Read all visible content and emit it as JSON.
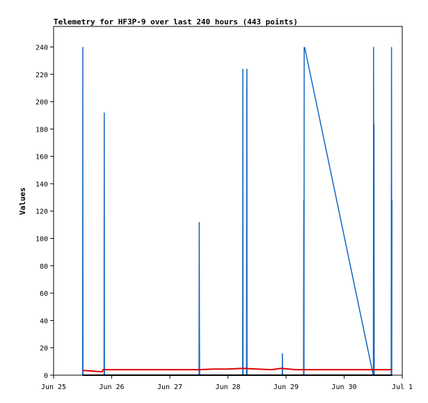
{
  "chart_data": {
    "type": "line",
    "title": "Telemetry for HF3P-9 over last 240 hours (443 points)",
    "xlabel": "",
    "ylabel": "Values",
    "x_axis": {
      "min": "2025-06-25T00:00",
      "max": "2025-07-01T00:00",
      "tick_values": [
        "2025-06-25T00:00",
        "2025-06-26T00:00",
        "2025-06-27T00:00",
        "2025-06-28T00:00",
        "2025-06-29T00:00",
        "2025-06-30T00:00",
        "2025-07-01T00:00"
      ],
      "tick_labels": [
        "Jun 25",
        "Jun 26",
        "Jun 27",
        "Jun 28",
        "Jun 29",
        "Jun 30",
        "Jul 1"
      ]
    },
    "ylim": [
      0,
      255
    ],
    "y_ticks": [
      0,
      20,
      40,
      60,
      80,
      100,
      120,
      140,
      160,
      180,
      200,
      220,
      240
    ],
    "grid": false,
    "colors": {
      "blue_series": "#1565c0",
      "red_series": "#dd0000",
      "baseline": "#000000"
    },
    "series": [
      {
        "color": "#1565c0",
        "x": [
          "2025-06-25T12:00",
          "2025-06-25T12:05",
          "2025-06-25T12:10",
          "2025-06-25T20:50",
          "2025-06-25T20:55",
          "2025-06-25T21:00",
          "2025-06-27T12:05",
          "2025-06-27T12:10",
          "2025-06-27T12:15",
          "2025-06-27T12:20",
          "2025-06-28T06:05",
          "2025-06-28T06:10",
          "2025-06-28T06:15",
          "2025-06-28T07:40",
          "2025-06-28T07:45",
          "2025-06-28T07:50",
          "2025-06-28T07:55",
          "2025-06-28T22:25",
          "2025-06-28T22:30",
          "2025-06-28T22:35",
          "2025-06-29T07:15",
          "2025-06-29T07:20",
          "2025-06-29T07:25",
          "2025-06-29T07:30",
          "2025-06-29T07:35",
          "2025-06-29T07:40",
          "2025-06-30T12:00",
          "2025-06-30T12:05",
          "2025-06-30T12:10",
          "2025-06-30T12:15",
          "2025-06-30T12:20",
          "2025-06-30T12:25",
          "2025-06-30T19:25",
          "2025-06-30T19:30",
          "2025-06-30T19:35",
          "2025-06-30T19:40",
          "2025-06-30T19:45"
        ],
        "y": [
          0,
          240,
          0,
          0,
          192,
          0,
          0,
          112,
          32,
          0,
          0,
          224,
          0,
          0,
          208,
          224,
          0,
          0,
          16,
          0,
          0,
          128,
          0,
          240,
          238,
          240,
          0,
          0,
          240,
          0,
          184,
          0,
          0,
          120,
          240,
          0,
          128
        ]
      },
      {
        "color": "#dd0000",
        "x": [
          "2025-06-25T12:00",
          "2025-06-25T16:00",
          "2025-06-25T20:00",
          "2025-06-25T20:30",
          "2025-06-26T12:00",
          "2025-06-27T12:00",
          "2025-06-27T18:00",
          "2025-06-28T00:00",
          "2025-06-28T06:00",
          "2025-06-28T12:00",
          "2025-06-28T18:00",
          "2025-06-28T22:00",
          "2025-06-29T04:00",
          "2025-06-29T12:00",
          "2025-06-30T00:00",
          "2025-06-30T12:00",
          "2025-06-30T19:50"
        ],
        "y": [
          3.5,
          3,
          2.5,
          4,
          4,
          4,
          4.5,
          4.5,
          5,
          4.5,
          4,
          5,
          4,
          4,
          4,
          4,
          4
        ]
      },
      {
        "color": "#000000",
        "x": [
          "2025-06-25T12:00",
          "2025-06-30T19:50"
        ],
        "y": [
          0,
          0
        ]
      }
    ]
  }
}
